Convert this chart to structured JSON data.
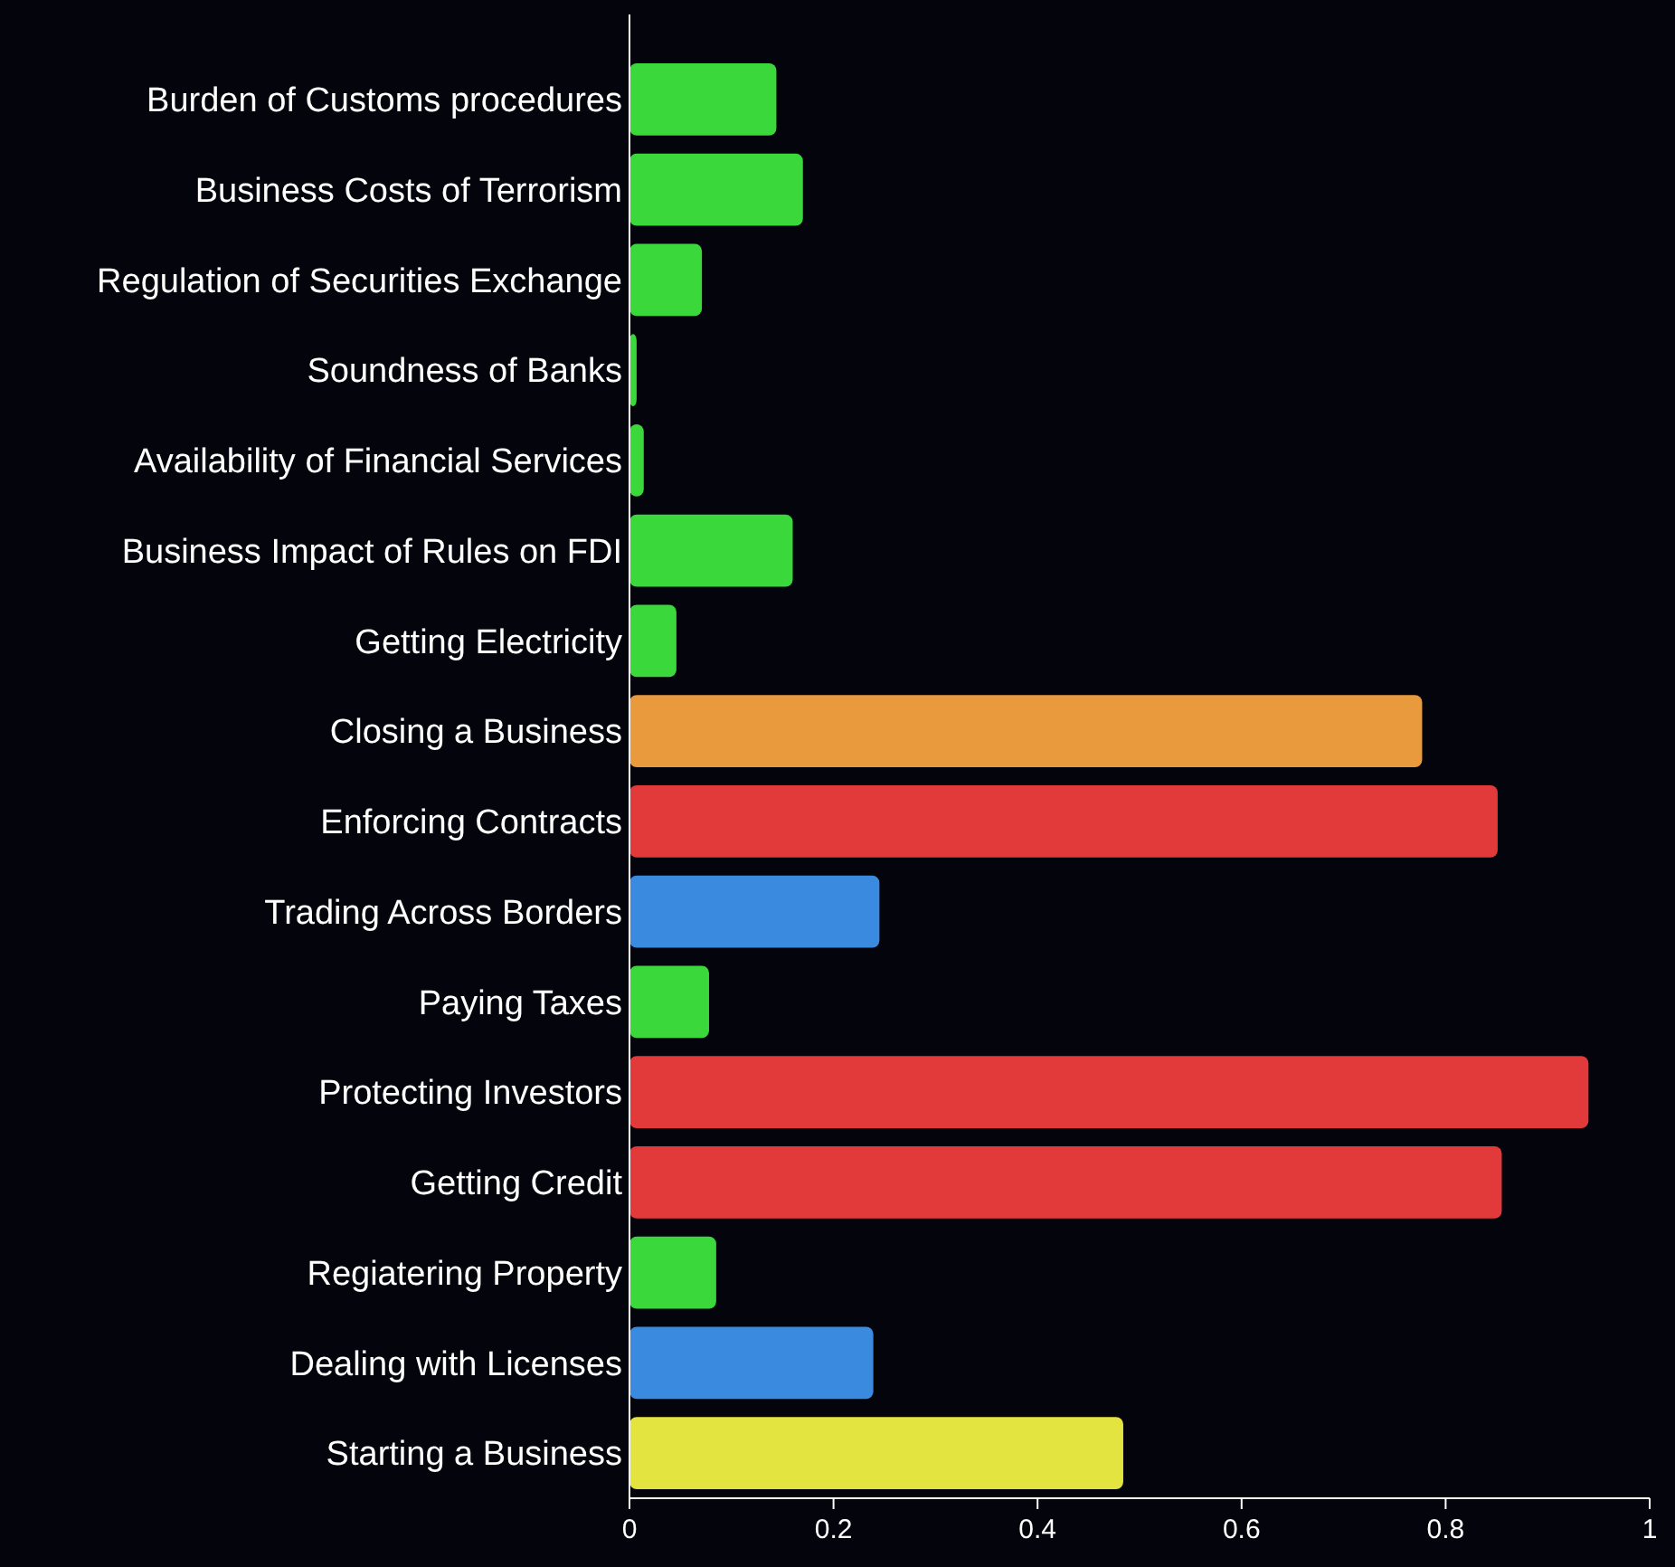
{
  "chart_data": {
    "type": "bar",
    "orientation": "horizontal",
    "categories": [
      "Burden of Customs procedures",
      "Business Costs of Terrorism",
      "Regulation of Securities Exchange",
      "Soundness of Banks",
      "Availability of Financial Services",
      "Business Impact of Rules on FDI",
      "Getting Electricity",
      "Closing a Business",
      "Enforcing Contracts",
      "Trading Across Borders",
      "Paying Taxes",
      "Protecting Investors",
      "Getting Credit",
      "Regiatering Property",
      "Dealing with Licenses",
      "Starting a Business"
    ],
    "values": [
      0.144,
      0.17,
      0.071,
      0.007,
      0.014,
      0.16,
      0.046,
      0.777,
      0.851,
      0.245,
      0.078,
      0.94,
      0.855,
      0.085,
      0.239,
      0.484
    ],
    "colors": [
      "#3ad83a",
      "#3ad83a",
      "#3ad83a",
      "#3ad83a",
      "#3ad83a",
      "#3ad83a",
      "#3ad83a",
      "#e89a3c",
      "#e23a3a",
      "#3a8ae0",
      "#3ad83a",
      "#e23a3a",
      "#e23a3a",
      "#3ad83a",
      "#3a8ae0",
      "#e4e440"
    ],
    "xlim": [
      0,
      1
    ],
    "xticks": [
      0,
      {
        "value": 0.2,
        "label": "0.2"
      },
      {
        "value": 0.4,
        "label": "0.4"
      },
      {
        "value": 0.6,
        "label": "0.6"
      },
      {
        "value": 0.8,
        "label": "0.8"
      },
      1
    ],
    "grid": false
  }
}
